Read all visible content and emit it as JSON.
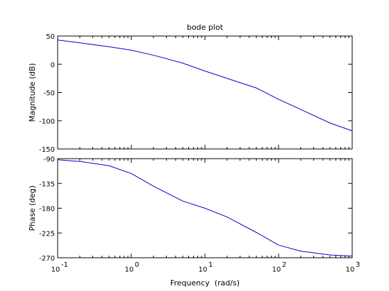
{
  "colors": {
    "line": "#0000cc",
    "axes": "#000000",
    "background": "#ffffff"
  },
  "chart_data": [
    {
      "type": "line",
      "title": "bode plot",
      "xlabel": "",
      "ylabel": "Magnitude (dB)",
      "xscale": "log",
      "xlim": [
        0.1,
        1000
      ],
      "ylim": [
        -150,
        50
      ],
      "xticks": [
        0.1,
        1,
        10,
        100,
        1000
      ],
      "yticks": [
        50,
        0,
        -50,
        -100,
        -150
      ],
      "ytick_labels": [
        "50",
        "0",
        "-50",
        "-100",
        "-150"
      ],
      "grid": false,
      "series": [
        {
          "x": [
            0.1,
            0.2,
            0.5,
            1,
            2,
            5,
            10,
            20,
            50,
            100,
            200,
            500,
            1000
          ],
          "y": [
            43,
            38,
            31,
            25,
            16,
            2,
            -12,
            -25,
            -42,
            -62,
            -80,
            -104,
            -118
          ]
        }
      ]
    },
    {
      "type": "line",
      "title": "",
      "xlabel": "Frequency  (rad/s)",
      "ylabel": "Phase (deg)",
      "xscale": "log",
      "xlim": [
        0.1,
        1000
      ],
      "ylim": [
        -270,
        -90
      ],
      "xticks": [
        0.1,
        1,
        10,
        100,
        1000
      ],
      "xtick_labels": [
        {
          "base": "10",
          "exp": "-1"
        },
        {
          "base": "10",
          "exp": "0"
        },
        {
          "base": "10",
          "exp": "1"
        },
        {
          "base": "10",
          "exp": "2"
        },
        {
          "base": "10",
          "exp": "3"
        }
      ],
      "yticks": [
        -90,
        -135,
        -180,
        -225,
        -270
      ],
      "ytick_labels": [
        "-90",
        "-135",
        "-180",
        "-225",
        "-270"
      ],
      "grid": false,
      "series": [
        {
          "x": [
            0.1,
            0.2,
            0.5,
            1,
            2,
            5,
            10,
            20,
            50,
            100,
            200,
            500,
            1000
          ],
          "y": [
            -92,
            -95,
            -103,
            -117,
            -140,
            -167,
            -180,
            -196,
            -224,
            -247,
            -258,
            -265,
            -267
          ]
        }
      ]
    }
  ]
}
